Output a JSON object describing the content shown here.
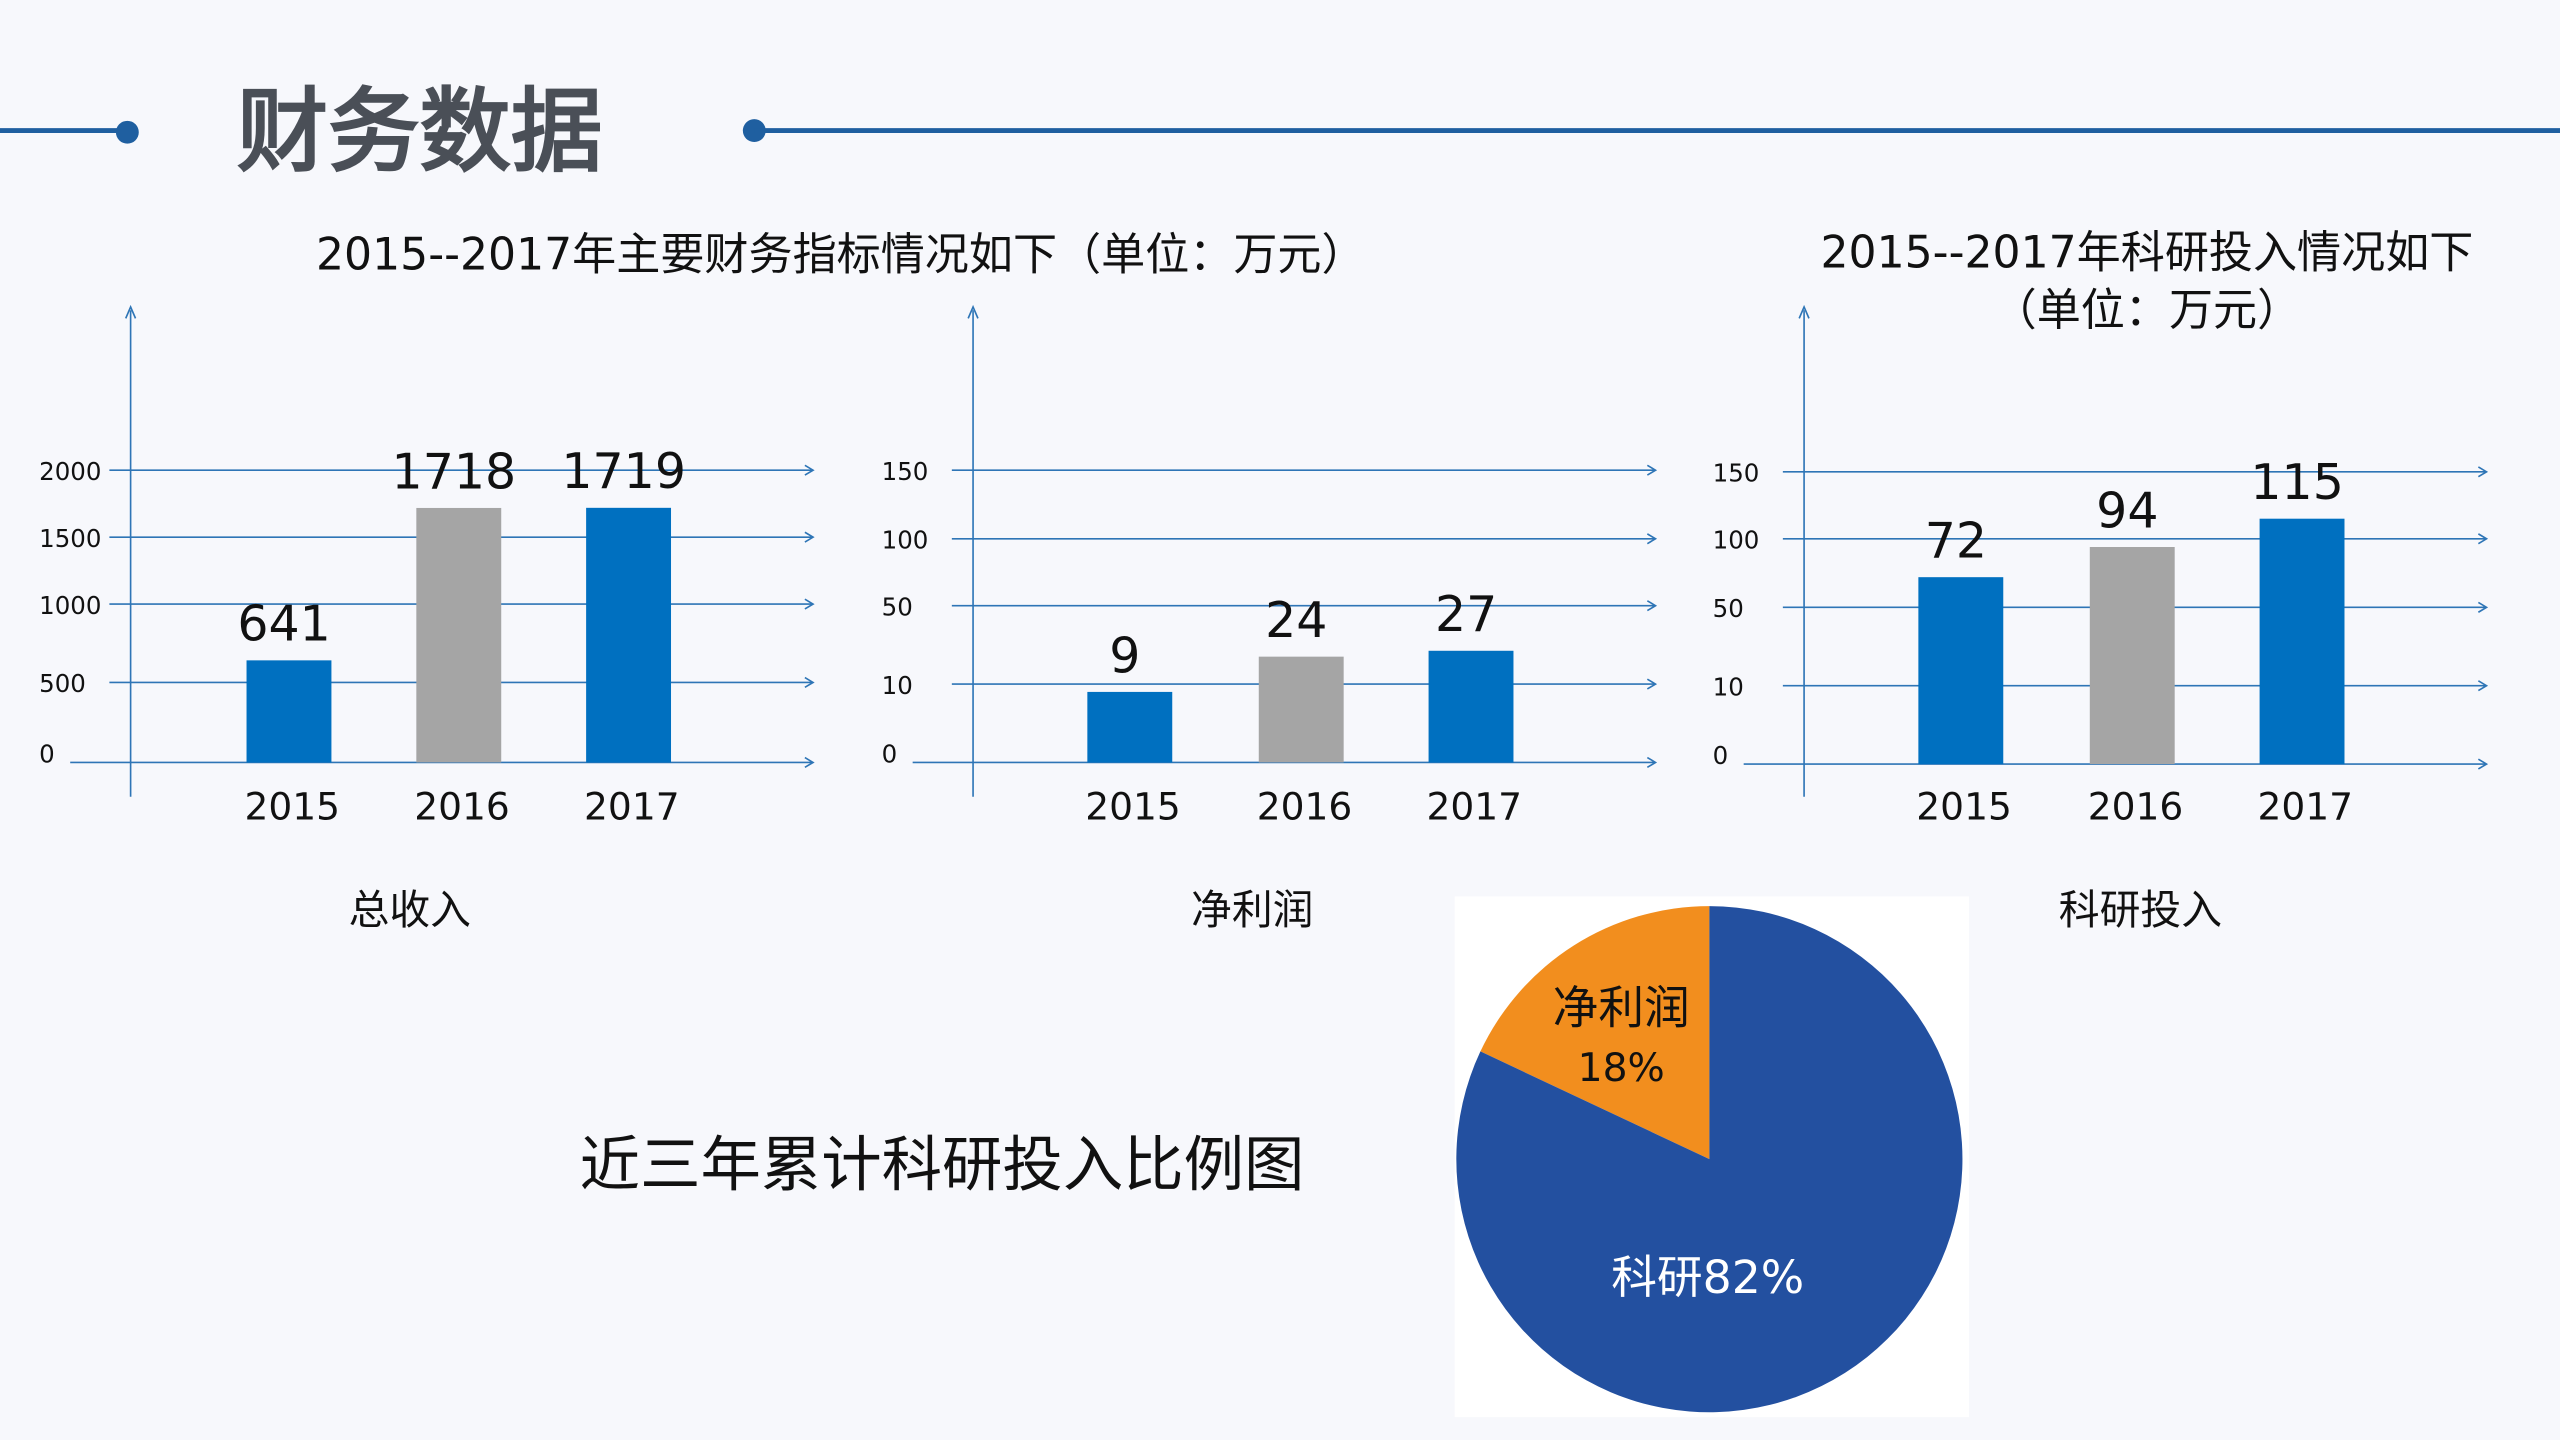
{
  "page_title": "财务数据",
  "colors": {
    "accent": "#1f5fa0",
    "bar_blue": "#0070c0",
    "bar_gray": "#a5a5a5",
    "pie_blue": "#2350a0",
    "pie_orange": "#f28e1e",
    "axis": "#2e75b6"
  },
  "finance_title": "2015--2017年主要财务指标情况如下（单位：万元）",
  "research_title_line1": "2015--2017年科研投入情况如下",
  "research_title_line2": "（单位：万元）",
  "pie_caption": "近三年累计科研投入比例图",
  "chart_data": [
    {
      "type": "bar",
      "xlabel": "总收入",
      "categories": [
        "2015",
        "2016",
        "2017"
      ],
      "values": [
        641,
        1718,
        1719
      ],
      "y_ticks": [
        0,
        500,
        1000,
        1500,
        2000
      ],
      "grid": true
    },
    {
      "type": "bar",
      "xlabel": "净利润",
      "categories": [
        "2015",
        "2016",
        "2017"
      ],
      "values": [
        9,
        24,
        27
      ],
      "y_ticks": [
        0,
        10,
        50,
        100,
        150
      ],
      "grid": true
    },
    {
      "type": "bar",
      "xlabel": "科研投入",
      "categories": [
        "2015",
        "2016",
        "2017"
      ],
      "values": [
        72,
        94,
        115
      ],
      "y_ticks": [
        0,
        10,
        50,
        100,
        150
      ],
      "grid": true
    },
    {
      "type": "pie",
      "slices": [
        {
          "label": "净利润",
          "percent_label": "18%",
          "value": 18
        },
        {
          "label": "科研",
          "percent_label": "82%",
          "value": 82
        }
      ]
    }
  ]
}
